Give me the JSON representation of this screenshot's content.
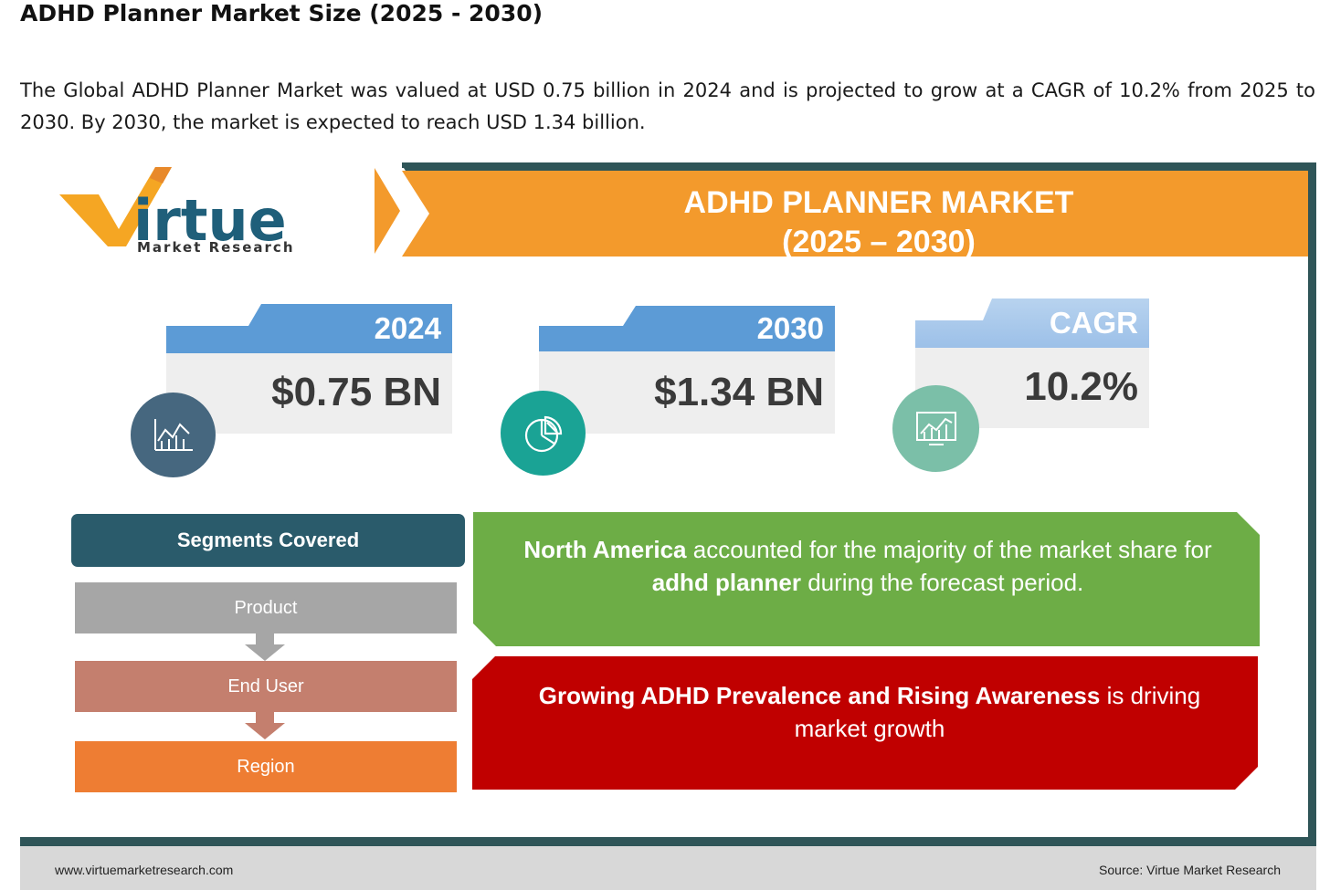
{
  "page": {
    "title": "ADHD Planner Market Size (2025 - 2030)",
    "intro": "The Global ADHD Planner Market was valued at USD 0.75 billion in 2024 and is projected to grow at a CAGR of 10.2% from 2025 to 2030. By 2030, the market is expected to reach USD 1.34 billion."
  },
  "logo": {
    "brand": "irtue",
    "brand_initial": "V",
    "tagline": "Market Research"
  },
  "banner": {
    "title": "ADHD PLANNER MARKET",
    "subtitle": "(2025 – 2030)"
  },
  "stats": [
    {
      "label": "2024",
      "value": "$0.75 BN",
      "icon": "bar-line-chart-icon"
    },
    {
      "label": "2030",
      "value": "$1.34 BN",
      "icon": "pie-chart-icon"
    },
    {
      "label": "CAGR",
      "value": "10.2%",
      "icon": "growth-chart-icon"
    }
  ],
  "segments": {
    "header": "Segments Covered",
    "items": [
      "Product",
      "End User",
      "Region"
    ]
  },
  "callouts": {
    "region": {
      "bold1": "North America",
      "text1": " accounted for the majority of the market share for ",
      "bold2": "adhd planner",
      "text2": " during the forecast period."
    },
    "driver": {
      "bold": "Growing ADHD Prevalence and Rising Awareness",
      "text": " is driving market growth"
    }
  },
  "footer": {
    "website": "www.virtuemarketresearch.com",
    "source": "Source: Virtue Market Research"
  },
  "colors": {
    "orange": "#f39a2c",
    "teal_dark": "#2f5558",
    "blue_tab": "#5c9bd6",
    "green": "#6dad46",
    "red": "#c00000",
    "gray_seg": "#a6a6a6",
    "salmon_seg": "#c47f6e",
    "orange_seg": "#ee7d33"
  }
}
